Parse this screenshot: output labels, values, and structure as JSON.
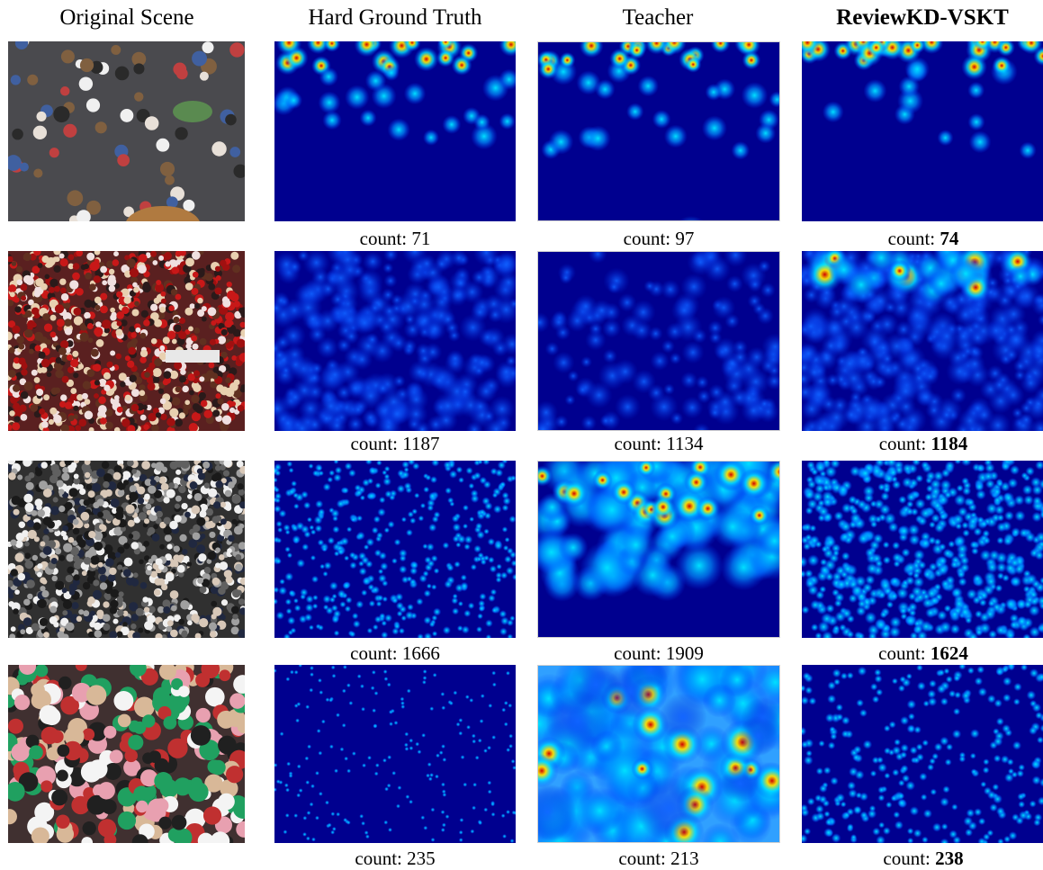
{
  "columns": [
    {
      "title": "Original Scene",
      "bold": false
    },
    {
      "title": "Hard Ground Truth",
      "bold": false
    },
    {
      "title": "Teacher",
      "bold": false
    },
    {
      "title": "ReviewKD-VSKT",
      "bold": true
    }
  ],
  "count_prefix": "count: ",
  "rows": [
    {
      "scene": "sparse-street",
      "counts": {
        "gt": "71",
        "teacher": "97",
        "student": "74"
      }
    },
    {
      "scene": "dense-red-crowd",
      "counts": {
        "gt": "1187",
        "teacher": "1134",
        "student": "1184"
      }
    },
    {
      "scene": "dense-white-crowd",
      "counts": {
        "gt": "1666",
        "teacher": "1909",
        "student": "1624"
      }
    },
    {
      "scene": "closeup-crowd",
      "counts": {
        "gt": "235",
        "teacher": "213",
        "student": "238"
      }
    }
  ],
  "colors": {
    "heatmap_background": "#00008f",
    "heatmap_low": "#0040ff",
    "heatmap_mid": "#00e0ff",
    "heatmap_high": "#ffe000",
    "heatmap_peak": "#d00000"
  }
}
